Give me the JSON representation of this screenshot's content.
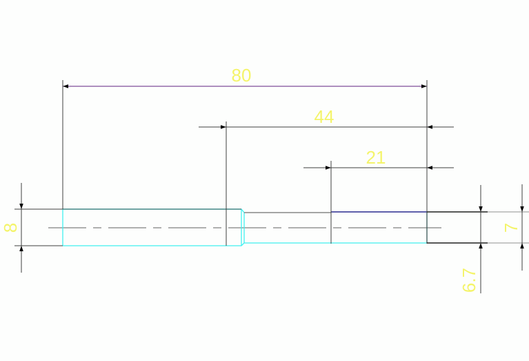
{
  "drawing": {
    "dimensions": {
      "overall_length": "80",
      "middle_length": "44",
      "end_length": "21",
      "large_diameter": "8",
      "small_diameter": "6.7",
      "end_diameter": "7"
    },
    "colors": {
      "outline": "#40f0f0",
      "end_top_edge": "#2a2a90",
      "dimension_line": "#404040",
      "dimension_text": "#f4f46a",
      "centerline": "#808080"
    }
  }
}
